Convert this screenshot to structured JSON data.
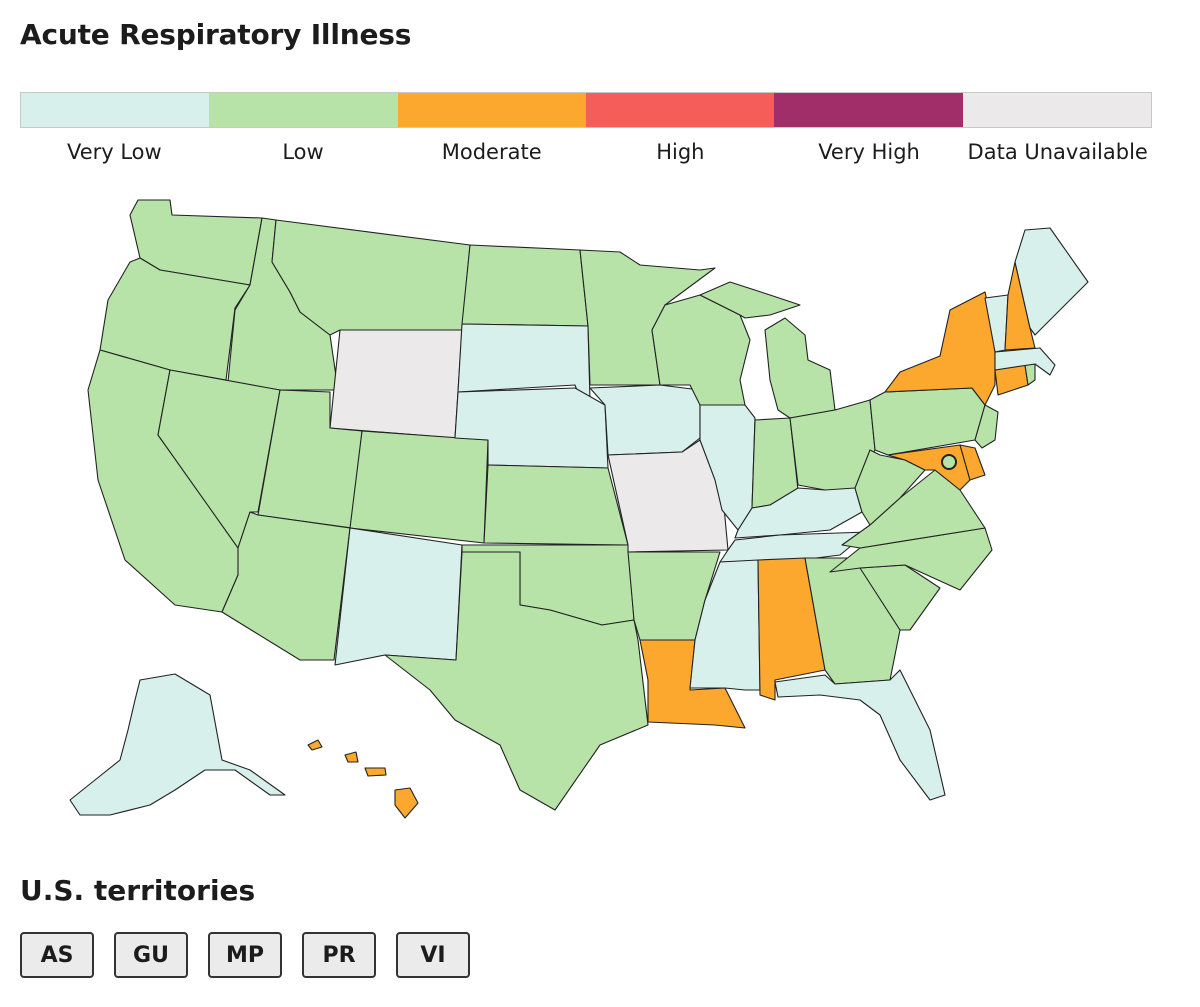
{
  "title": "Acute Respiratory Illness",
  "legend": [
    {
      "label": "Very Low",
      "color": "#d7f0ec"
    },
    {
      "label": "Low",
      "color": "#b7e3a9"
    },
    {
      "label": "Moderate",
      "color": "#fca82e"
    },
    {
      "label": "High",
      "color": "#f55e58"
    },
    {
      "label": "Very High",
      "color": "#a12e68"
    },
    {
      "label": "Data Unavailable",
      "color": "#ebe9e9"
    }
  ],
  "states": {
    "WA": "Low",
    "OR": "Low",
    "CA": "Low",
    "ID": "Low",
    "NV": "Low",
    "MT": "Low",
    "WY": "Data Unavailable",
    "UT": "Low",
    "AZ": "Low",
    "CO": "Low",
    "NM": "Very Low",
    "ND": "Low",
    "SD": "Very Low",
    "NE": "Very Low",
    "KS": "Low",
    "OK": "Low",
    "TX": "Low",
    "MN": "Low",
    "IA": "Very Low",
    "MO": "Data Unavailable",
    "AR": "Low",
    "LA": "Moderate",
    "WI": "Low",
    "IL": "Very Low",
    "MI": "Low",
    "IN": "Low",
    "OH": "Low",
    "KY": "Very Low",
    "TN": "Very Low",
    "MS": "Very Low",
    "AL": "Moderate",
    "GA": "Low",
    "FL": "Very Low",
    "SC": "Low",
    "NC": "Low",
    "VA": "Low",
    "WV": "Low",
    "PA": "Low",
    "NY": "Moderate",
    "NJ": "Low",
    "DE": "Moderate",
    "MD": "Moderate",
    "DC": "Low",
    "CT": "Moderate",
    "RI": "Low",
    "MA": "Very Low",
    "VT": "Very Low",
    "NH": "Moderate",
    "ME": "Very Low",
    "AK": "Very Low",
    "HI": "Moderate"
  },
  "territories_title": "U.S. territories",
  "territories": [
    "AS",
    "GU",
    "MP",
    "PR",
    "VI"
  ]
}
